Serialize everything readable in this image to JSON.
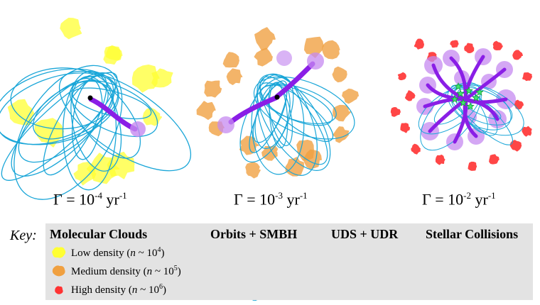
{
  "panels": [
    {
      "gamma_label": "Γ = 10",
      "exponent": "-4",
      "unit": " yr",
      "unit_exp": "-1",
      "cloud_color": "#ffff33"
    },
    {
      "gamma_label": "Γ = 10",
      "exponent": "-3",
      "unit": " yr",
      "unit_exp": "-1",
      "cloud_color": "#f0a040"
    },
    {
      "gamma_label": "Γ = 10",
      "exponent": "-2",
      "unit": " yr",
      "unit_exp": "-1",
      "cloud_color": "#ff3333"
    }
  ],
  "key": {
    "label": "Key:",
    "molecular_clouds": {
      "heading": "Molecular Clouds",
      "items": [
        {
          "text": "Low density (",
          "var": "n",
          "approx": " ~ 10",
          "exp": "4",
          "close": ")",
          "color": "#ffff33"
        },
        {
          "text": "Medium density (",
          "var": "n",
          "approx": " ~ 10",
          "exp": "5",
          "close": ")",
          "color": "#f0a040"
        },
        {
          "text": "High density (",
          "var": "n",
          "approx": " ~ 10",
          "exp": "6",
          "close": ")",
          "color": "#ff3333"
        }
      ]
    },
    "orbits_heading": "Orbits + SMBH",
    "uds_heading": "UDS + UDR",
    "collisions_heading": "Stellar Collisions"
  },
  "colors": {
    "orbit": "#1aa6d8",
    "uds": "#8a1ee6",
    "udr": "#c58af0",
    "star": "#3ee86b",
    "smbh": "#000000",
    "key_bg": "#e3e3e3"
  }
}
